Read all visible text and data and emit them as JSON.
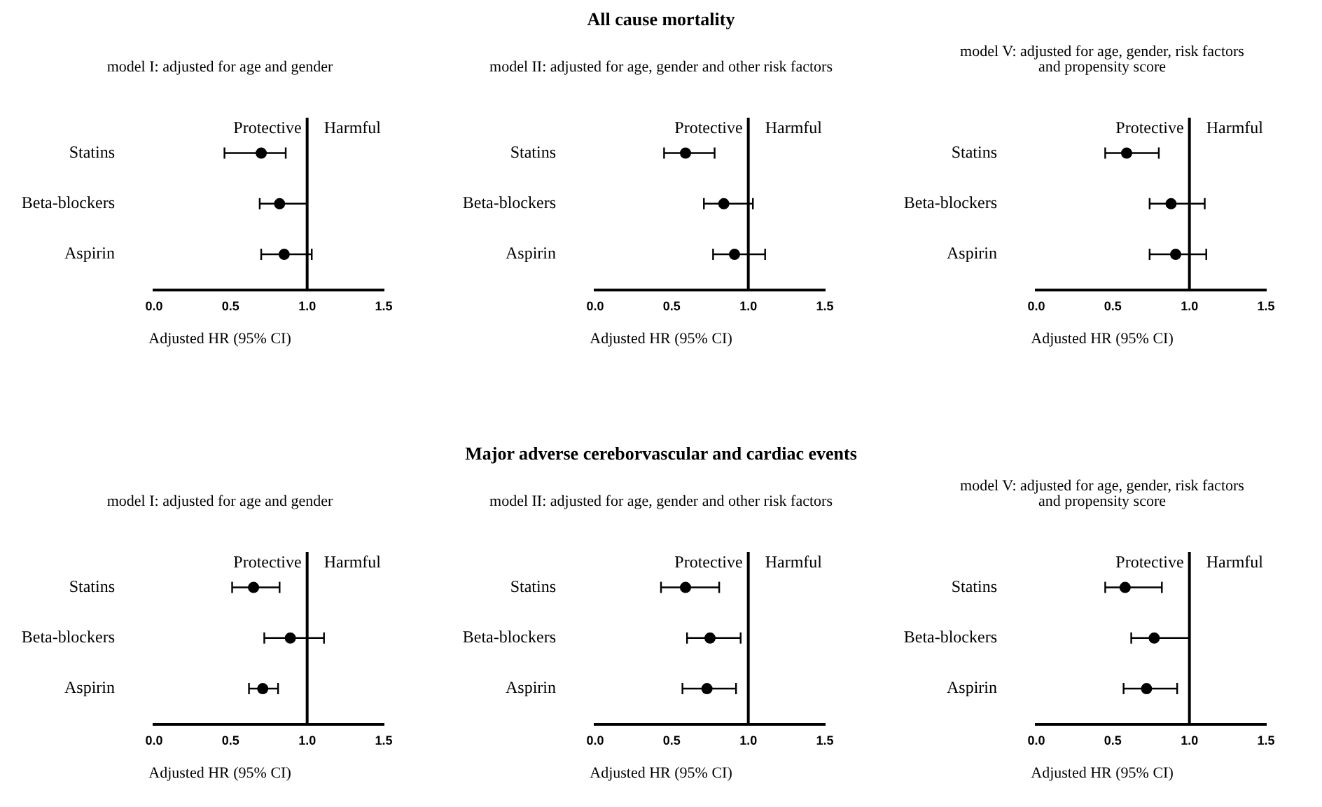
{
  "chart_data": [
    {
      "type": "scatter",
      "orientation": "horizontal",
      "subtitle": "model I: adjusted for age and gender",
      "xlabel": "Adjusted HR (95% CI)",
      "categories": [
        "Statins",
        "Beta-blockers",
        "Aspirin"
      ],
      "values": [
        0.7,
        0.82,
        0.85
      ],
      "errors": [
        [
          0.46,
          0.86
        ],
        [
          0.69,
          1.0
        ],
        [
          0.7,
          1.03
        ]
      ],
      "color": "#000000",
      "marker": "circle",
      "xlim": [
        0,
        1.5
      ],
      "xticks": [
        {
          "value": 0,
          "label": "0.0"
        },
        {
          "value": 0.5,
          "label": "0.5"
        },
        {
          "value": 1,
          "label": "1.0"
        },
        {
          "value": 1.5,
          "label": "1.5"
        }
      ],
      "ref_lines": [
        {
          "axis": "x",
          "value": 1,
          "color": "#000000"
        }
      ],
      "annotations": [
        "Protective",
        "Harmful"
      ]
    },
    {
      "type": "scatter",
      "orientation": "horizontal",
      "title": "All cause mortality",
      "subtitle": "model II: adjusted for age, gender and other risk factors",
      "xlabel": "Adjusted HR (95% CI)",
      "categories": [
        "Statins",
        "Beta-blockers",
        "Aspirin"
      ],
      "values": [
        0.59,
        0.84,
        0.91
      ],
      "errors": [
        [
          0.45,
          0.78
        ],
        [
          0.71,
          1.03
        ],
        [
          0.77,
          1.11
        ]
      ],
      "color": "#000000",
      "marker": "circle",
      "xlim": [
        0,
        1.5
      ],
      "xticks": [
        {
          "value": 0,
          "label": "0.0"
        },
        {
          "value": 0.5,
          "label": "0.5"
        },
        {
          "value": 1,
          "label": "1.0"
        },
        {
          "value": 1.5,
          "label": "1.5"
        }
      ],
      "ref_lines": [
        {
          "axis": "x",
          "value": 1,
          "color": "#000000"
        }
      ],
      "annotations": [
        "Protective",
        "Harmful"
      ]
    },
    {
      "type": "scatter",
      "orientation": "horizontal",
      "subtitle": "model V: adjusted for age, gender, risk factors\nand propensity score",
      "xlabel": "Adjusted HR (95% CI)",
      "categories": [
        "Statins",
        "Beta-blockers",
        "Aspirin"
      ],
      "values": [
        0.59,
        0.88,
        0.91
      ],
      "errors": [
        [
          0.45,
          0.8
        ],
        [
          0.74,
          1.1
        ],
        [
          0.74,
          1.11
        ]
      ],
      "color": "#000000",
      "marker": "circle",
      "xlim": [
        0,
        1.5
      ],
      "xticks": [
        {
          "value": 0,
          "label": "0.0"
        },
        {
          "value": 0.5,
          "label": "0.5"
        },
        {
          "value": 1,
          "label": "1.0"
        },
        {
          "value": 1.5,
          "label": "1.5"
        }
      ],
      "ref_lines": [
        {
          "axis": "x",
          "value": 1,
          "color": "#000000"
        }
      ],
      "annotations": [
        "Protective",
        "Harmful"
      ]
    },
    {
      "type": "scatter",
      "orientation": "horizontal",
      "subtitle": "model I: adjusted for age and gender",
      "xlabel": "Adjusted HR (95% CI)",
      "categories": [
        "Statins",
        "Beta-blockers",
        "Aspirin"
      ],
      "values": [
        0.65,
        0.89,
        0.71
      ],
      "errors": [
        [
          0.51,
          0.82
        ],
        [
          0.72,
          1.11
        ],
        [
          0.62,
          0.81
        ]
      ],
      "color": "#000000",
      "marker": "circle",
      "xlim": [
        0,
        1.5
      ],
      "xticks": [
        {
          "value": 0,
          "label": "0.0"
        },
        {
          "value": 0.5,
          "label": "0.5"
        },
        {
          "value": 1,
          "label": "1.0"
        },
        {
          "value": 1.5,
          "label": "1.5"
        }
      ],
      "ref_lines": [
        {
          "axis": "x",
          "value": 1,
          "color": "#000000"
        }
      ],
      "annotations": [
        "Protective",
        "Harmful"
      ]
    },
    {
      "type": "scatter",
      "orientation": "horizontal",
      "title": "Major adverse cereborvascular and cardiac events",
      "subtitle": "model II: adjusted for age, gender and other risk factors",
      "xlabel": "Adjusted HR (95% CI)",
      "categories": [
        "Statins",
        "Beta-blockers",
        "Aspirin"
      ],
      "values": [
        0.59,
        0.75,
        0.73
      ],
      "errors": [
        [
          0.43,
          0.81
        ],
        [
          0.6,
          0.95
        ],
        [
          0.57,
          0.92
        ]
      ],
      "color": "#000000",
      "marker": "circle",
      "xlim": [
        0,
        1.5
      ],
      "xticks": [
        {
          "value": 0,
          "label": "0.0"
        },
        {
          "value": 0.5,
          "label": "0.5"
        },
        {
          "value": 1,
          "label": "1.0"
        },
        {
          "value": 1.5,
          "label": "1.5"
        }
      ],
      "ref_lines": [
        {
          "axis": "x",
          "value": 1,
          "color": "#000000"
        }
      ],
      "annotations": [
        "Protective",
        "Harmful"
      ]
    },
    {
      "type": "scatter",
      "orientation": "horizontal",
      "subtitle": "model V: adjusted for age, gender, risk factors\nand propensity score",
      "xlabel": "Adjusted HR (95% CI)",
      "categories": [
        "Statins",
        "Beta-blockers",
        "Aspirin"
      ],
      "values": [
        0.58,
        0.77,
        0.72
      ],
      "errors": [
        [
          0.45,
          0.82
        ],
        [
          0.62,
          1.0
        ],
        [
          0.57,
          0.92
        ]
      ],
      "color": "#000000",
      "marker": "circle",
      "xlim": [
        0,
        1.5
      ],
      "xticks": [
        {
          "value": 0,
          "label": "0.0"
        },
        {
          "value": 0.5,
          "label": "0.5"
        },
        {
          "value": 1,
          "label": "1.0"
        },
        {
          "value": 1.5,
          "label": "1.5"
        }
      ],
      "ref_lines": [
        {
          "axis": "x",
          "value": 1,
          "color": "#000000"
        }
      ],
      "annotations": [
        "Protective",
        "Harmful"
      ]
    }
  ]
}
